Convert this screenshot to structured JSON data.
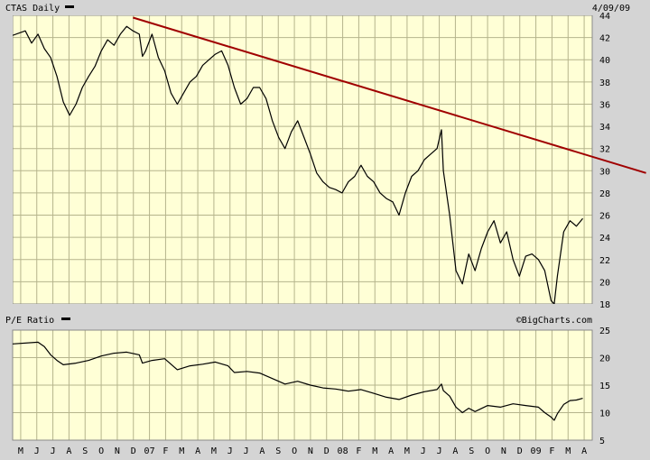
{
  "chart_data": [
    {
      "type": "line",
      "title": "CTAS Daily",
      "date": "4/09/09",
      "ylim": [
        18,
        44
      ],
      "yticks": [
        18,
        20,
        22,
        24,
        26,
        28,
        30,
        32,
        34,
        36,
        38,
        40,
        42,
        44
      ],
      "x_tick_labels": [
        "M",
        "J",
        "J",
        "A",
        "S",
        "O",
        "N",
        "D",
        "07",
        "F",
        "M",
        "A",
        "M",
        "J",
        "J",
        "A",
        "S",
        "O",
        "N",
        "D",
        "08",
        "F",
        "M",
        "A",
        "M",
        "J",
        "J",
        "A",
        "S",
        "O",
        "N",
        "D",
        "09",
        "F",
        "M",
        "A"
      ],
      "grid": true,
      "plot_bg": "#ffffd6",
      "series": [
        {
          "name": "CTAS",
          "color": "#000000",
          "points": [
            [
              0,
              42.2
            ],
            [
              2,
              42.6
            ],
            [
              3,
              41.5
            ],
            [
              4,
              42.3
            ],
            [
              5,
              41.0
            ],
            [
              6,
              40.2
            ],
            [
              7,
              38.5
            ],
            [
              8,
              36.2
            ],
            [
              9,
              35.0
            ],
            [
              10,
              36.0
            ],
            [
              11,
              37.5
            ],
            [
              12,
              38.5
            ],
            [
              13,
              39.4
            ],
            [
              14,
              40.8
            ],
            [
              15,
              41.8
            ],
            [
              16,
              41.3
            ],
            [
              17,
              42.3
            ],
            [
              18,
              43.0
            ],
            [
              19,
              42.6
            ],
            [
              20,
              42.3
            ],
            [
              20.5,
              40.3
            ],
            [
              21,
              40.8
            ],
            [
              22,
              42.3
            ],
            [
              23,
              40.2
            ],
            [
              24,
              39.0
            ],
            [
              25,
              37.0
            ],
            [
              26,
              36.0
            ],
            [
              27,
              37.0
            ],
            [
              28,
              38.0
            ],
            [
              29,
              38.5
            ],
            [
              30,
              39.5
            ],
            [
              31,
              40.0
            ],
            [
              32,
              40.5
            ],
            [
              33,
              40.8
            ],
            [
              34,
              39.5
            ],
            [
              35,
              37.5
            ],
            [
              36,
              36.0
            ],
            [
              37,
              36.5
            ],
            [
              38,
              37.5
            ],
            [
              39,
              37.5
            ],
            [
              40,
              36.5
            ],
            [
              41,
              34.5
            ],
            [
              42,
              33.0
            ],
            [
              43,
              32.0
            ],
            [
              44,
              33.5
            ],
            [
              45,
              34.5
            ],
            [
              46,
              33.0
            ],
            [
              47,
              31.5
            ],
            [
              48,
              29.8
            ],
            [
              49,
              29.0
            ],
            [
              50,
              28.5
            ],
            [
              51,
              28.3
            ],
            [
              52,
              28.0
            ],
            [
              53,
              29.0
            ],
            [
              54,
              29.5
            ],
            [
              55,
              30.5
            ],
            [
              56,
              29.5
            ],
            [
              57,
              29.0
            ],
            [
              58,
              28.0
            ],
            [
              59,
              27.5
            ],
            [
              60,
              27.2
            ],
            [
              61,
              26.0
            ],
            [
              62,
              28.0
            ],
            [
              63,
              29.5
            ],
            [
              64,
              30.0
            ],
            [
              65,
              31.0
            ],
            [
              66,
              31.5
            ],
            [
              67,
              32.0
            ],
            [
              67.7,
              33.7
            ],
            [
              68,
              30.0
            ],
            [
              69,
              26.0
            ],
            [
              70,
              21.0
            ],
            [
              71,
              19.8
            ],
            [
              72,
              22.5
            ],
            [
              73,
              21.0
            ],
            [
              74,
              23.0
            ],
            [
              75,
              24.5
            ],
            [
              76,
              25.5
            ],
            [
              77,
              23.5
            ],
            [
              78,
              24.5
            ],
            [
              79,
              22.0
            ],
            [
              80,
              20.5
            ],
            [
              81,
              22.3
            ],
            [
              82,
              22.5
            ],
            [
              83,
              22.0
            ],
            [
              84,
              21.0
            ],
            [
              85,
              18.3
            ],
            [
              85.5,
              18.0
            ],
            [
              86,
              20.5
            ],
            [
              87,
              24.5
            ],
            [
              88,
              25.5
            ],
            [
              89,
              25.0
            ],
            [
              90,
              25.7
            ]
          ]
        },
        {
          "name": "Trendline",
          "color": "#a00000",
          "points": [
            [
              19,
              43.8
            ],
            [
              100,
              29.8
            ]
          ]
        }
      ]
    },
    {
      "type": "line",
      "title": "P/E Ratio",
      "ylim": [
        5,
        25
      ],
      "yticks": [
        5,
        10,
        15,
        20,
        25
      ],
      "credit": "©BigCharts.com",
      "grid": true,
      "plot_bg": "#ffffd6",
      "series": [
        {
          "name": "P/E Ratio",
          "color": "#000000",
          "points": [
            [
              0,
              22.5
            ],
            [
              4,
              22.8
            ],
            [
              5,
              22.0
            ],
            [
              6,
              20.5
            ],
            [
              7,
              19.5
            ],
            [
              8,
              18.7
            ],
            [
              10,
              19.0
            ],
            [
              12,
              19.5
            ],
            [
              14,
              20.3
            ],
            [
              16,
              20.8
            ],
            [
              18,
              21.0
            ],
            [
              20,
              20.5
            ],
            [
              20.5,
              19.0
            ],
            [
              22,
              19.5
            ],
            [
              24,
              19.8
            ],
            [
              25,
              18.8
            ],
            [
              26,
              17.8
            ],
            [
              28,
              18.5
            ],
            [
              30,
              18.8
            ],
            [
              32,
              19.2
            ],
            [
              34,
              18.5
            ],
            [
              35,
              17.3
            ],
            [
              37,
              17.5
            ],
            [
              39,
              17.2
            ],
            [
              41,
              16.2
            ],
            [
              43,
              15.2
            ],
            [
              45,
              15.7
            ],
            [
              47,
              15.0
            ],
            [
              49,
              14.5
            ],
            [
              51,
              14.3
            ],
            [
              53,
              13.9
            ],
            [
              55,
              14.2
            ],
            [
              57,
              13.5
            ],
            [
              59,
              12.8
            ],
            [
              61,
              12.4
            ],
            [
              63,
              13.2
            ],
            [
              65,
              13.8
            ],
            [
              67,
              14.2
            ],
            [
              67.7,
              15.2
            ],
            [
              68,
              14.0
            ],
            [
              69,
              13.0
            ],
            [
              70,
              11.0
            ],
            [
              71,
              10.0
            ],
            [
              72,
              10.8
            ],
            [
              73,
              10.2
            ],
            [
              75,
              11.3
            ],
            [
              77,
              11.0
            ],
            [
              79,
              11.6
            ],
            [
              81,
              11.3
            ],
            [
              83,
              11.0
            ],
            [
              84,
              10.0
            ],
            [
              85,
              9.2
            ],
            [
              85.5,
              8.6
            ],
            [
              86,
              9.8
            ],
            [
              87,
              11.5
            ],
            [
              88,
              12.2
            ],
            [
              89,
              12.3
            ],
            [
              90,
              12.6
            ]
          ]
        }
      ]
    }
  ]
}
